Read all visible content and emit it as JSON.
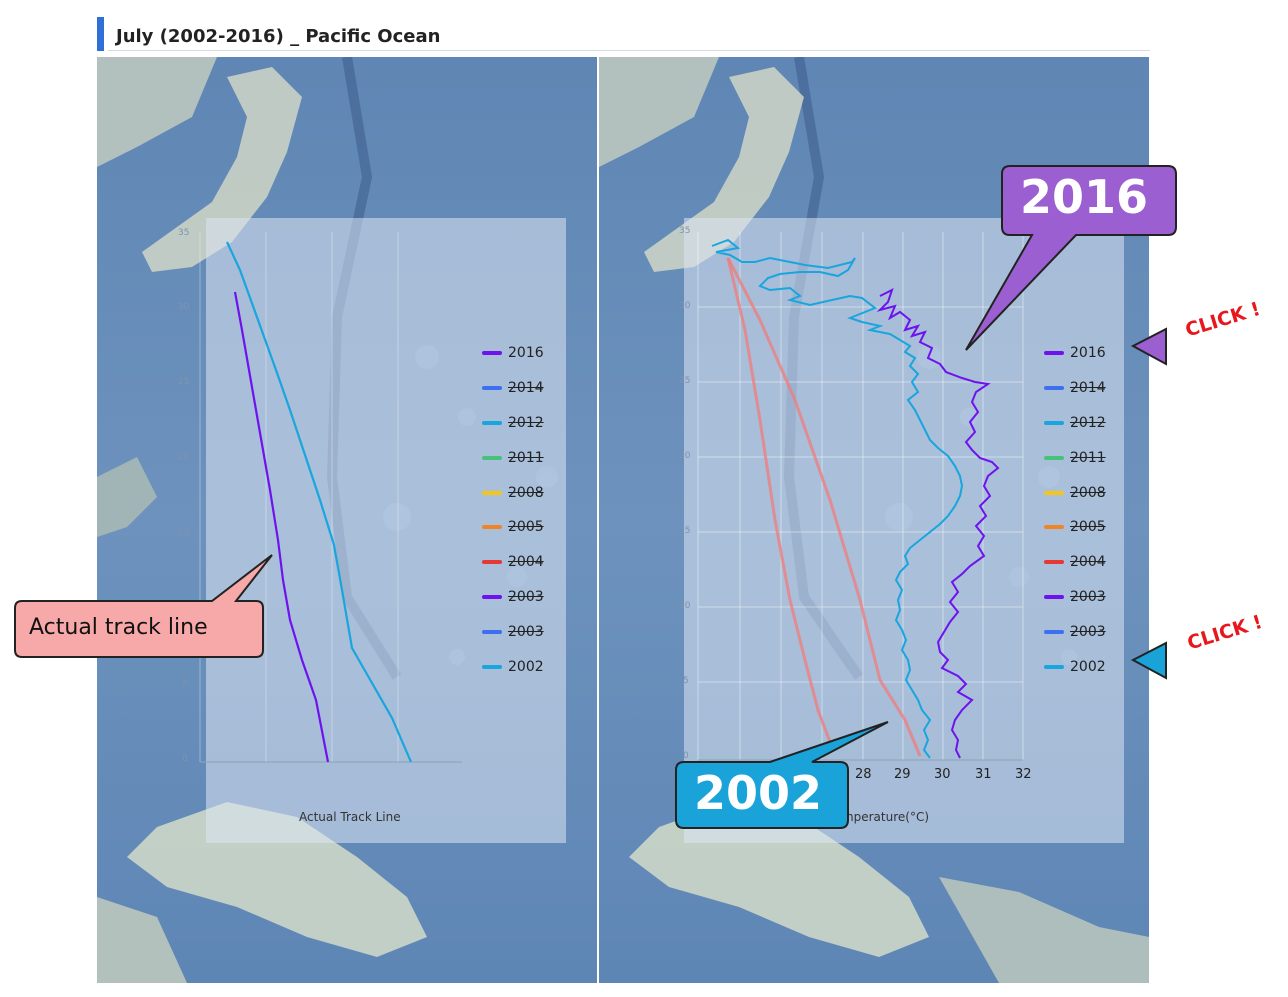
{
  "header": {
    "title": "July (2002-2016) _ Pacific Ocean",
    "accent": "#2f6fd8"
  },
  "legend": [
    {
      "label": "2016",
      "color": "#6f13ee",
      "active": true
    },
    {
      "label": "2014",
      "color": "#3d6ff0",
      "active": false
    },
    {
      "label": "2012",
      "color": "#19a5de",
      "active": false
    },
    {
      "label": "2011",
      "color": "#48c27a",
      "active": false
    },
    {
      "label": "2008",
      "color": "#f5c518",
      "active": false
    },
    {
      "label": "2005",
      "color": "#ef8526",
      "active": false
    },
    {
      "label": "2004",
      "color": "#e53935",
      "active": false
    },
    {
      "label": "2003",
      "color": "#6f13ee",
      "active": false
    },
    {
      "label": "2003",
      "color": "#3d6ff0",
      "active": false
    },
    {
      "label": "2002",
      "color": "#19a5de",
      "active": true
    }
  ],
  "left_panel": {
    "axis_title": "Actual Track Line",
    "yticks": [
      "35",
      "30",
      "25",
      "20",
      "15",
      "10",
      "5",
      "0"
    ]
  },
  "right_panel": {
    "axis_title_partial": "nperature(°C)",
    "xticks": [
      "28",
      "29",
      "30",
      "31",
      "32"
    ],
    "yticks": [
      "35",
      "30",
      "25",
      "20",
      "15",
      "10",
      "5",
      "0"
    ]
  },
  "callouts": {
    "track": "Actual track line",
    "year_2016": "2016",
    "year_2002": "2002",
    "click_1": "CLICK !",
    "click_2": "CLICK !"
  },
  "colors": {
    "callout_2016": "#9b5fd1",
    "callout_2002": "#1aa3d8",
    "callout_track": "#f7a8a8",
    "click": "#e8161d",
    "red_track": "#f27b7b"
  }
}
